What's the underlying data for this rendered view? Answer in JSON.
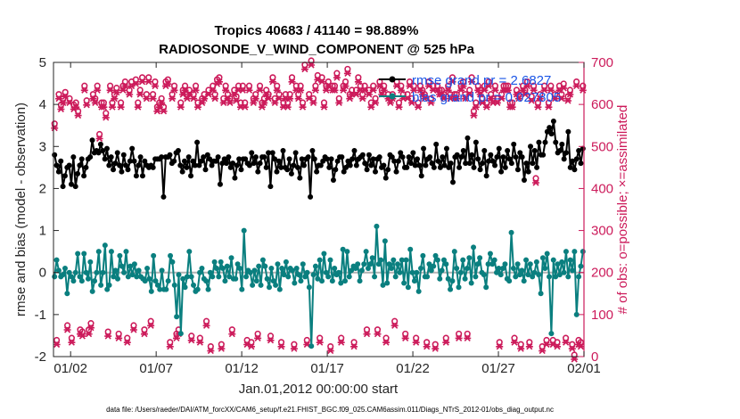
{
  "chart_data": {
    "type": "line",
    "title": "Tropics 40683 / 41140 = 98.889%",
    "subtitle": "RADIOSONDE_V_WIND_COMPONENT @ 525 hPa",
    "xlabel": "Jan.01,2012 00:00:00 start",
    "ylabel": "rmse and bias (model - observation)",
    "ylabel_right": "# of obs: o=possible; ×=assimilated",
    "xlim": [
      0,
      31
    ],
    "ylim": [
      -2,
      5
    ],
    "ylim_right": [
      0,
      700
    ],
    "x_ticks": [
      1,
      6,
      11,
      16,
      21,
      26,
      31
    ],
    "x_tick_labels": [
      "01/02",
      "01/07",
      "01/12",
      "01/17",
      "01/22",
      "01/27",
      "02/01"
    ],
    "y_ticks": [
      -2,
      -1,
      0,
      1,
      2,
      3,
      4,
      5
    ],
    "y_tick_labels": [
      "-2",
      "-1",
      "0",
      "1",
      "2",
      "3",
      "4",
      "5"
    ],
    "y_ticks_right": [
      0,
      100,
      200,
      300,
      400,
      500,
      600,
      700
    ],
    "y_tick_labels_right": [
      "0",
      "100",
      "200",
      "300",
      "400",
      "500",
      "600",
      "700"
    ],
    "legend": [
      "rmse grand pr = 2.6827",
      "bias grand pr = 0.027805"
    ],
    "footer": "data file: /Users/raeder/DAI/ATM_forcXX/CAM6_setup/f.e21.FHIST_BGC.f09_025.CAM6assim.011/Diags_NTrS_2012-01/obs_diag_output.nc",
    "colors": {
      "rmse": "#000000",
      "bias": "#0a7f7f",
      "obs": "#cc1a5a",
      "zero": "#b3b3b3"
    },
    "series": [
      {
        "name": "rmse",
        "axis": "left",
        "values": [
          2.8,
          2.55,
          2.4,
          2.65,
          2.05,
          2.3,
          2.5,
          2.55,
          2.1,
          2.75,
          2.05,
          2.35,
          2.55,
          2.7,
          2.3,
          2.5,
          2.7,
          2.75,
          3.15,
          2.85,
          2.9,
          2.85,
          3.05,
          2.9,
          2.7,
          2.95,
          2.55,
          2.75,
          2.45,
          2.6,
          2.85,
          2.55,
          2.4,
          2.8,
          2.55,
          2.45,
          2.65,
          2.95,
          2.65,
          2.3,
          2.55,
          2.75,
          2.3,
          2.65,
          2.55,
          2.5,
          2.55,
          2.5,
          2.7,
          2.7,
          2.7,
          2.75,
          1.8,
          2.75,
          2.75,
          2.8,
          2.6,
          2.65,
          2.85,
          2.9,
          2.55,
          2.4,
          2.65,
          2.5,
          2.75,
          2.3,
          2.65,
          2.55,
          3.1,
          2.55,
          2.65,
          2.75,
          2.45,
          2.8,
          2.7,
          2.55,
          2.65,
          2.65,
          2.75,
          2.1,
          2.6,
          2.7,
          2.6,
          2.75,
          2.5,
          2.6,
          2.25,
          2.55,
          2.7,
          2.45,
          2.7,
          2.7,
          2.6,
          2.55,
          2.85,
          2.6,
          2.75,
          2.4,
          2.6,
          2.75,
          2.75,
          2.5,
          2.85,
          2.05,
          2.85,
          2.7,
          2.4,
          2.65,
          2.5,
          2.9,
          2.5,
          2.45,
          2.7,
          2.35,
          2.55,
          2.85,
          2.5,
          2.25,
          2.7,
          2.55,
          2.7,
          2.75,
          1.8,
          2.9,
          2.7,
          2.4,
          2.55,
          2.55,
          2.65,
          2.75,
          2.7,
          2.5,
          2.7,
          2.2,
          2.45,
          2.65,
          2.75,
          2.75,
          2.4,
          2.5,
          2.65,
          2.55,
          2.7,
          2.9,
          2.55,
          2.7,
          2.75,
          2.8,
          2.6,
          2.45,
          2.8,
          2.55,
          2.7,
          2.4,
          2.7,
          2.75,
          2.5,
          2.55,
          2.25,
          2.45,
          2.8,
          2.75,
          2.65,
          2.4,
          2.65,
          2.85,
          2.75,
          2.5,
          2.5,
          2.75,
          2.6,
          2.85,
          2.55,
          2.7,
          2.55,
          2.3,
          2.95,
          2.55,
          2.7,
          2.75,
          2.6,
          2.5,
          3.05,
          2.65,
          2.5,
          2.75,
          2.55,
          2.95,
          2.5,
          2.6,
          2.15,
          2.75,
          2.8,
          2.5,
          2.75,
          2.9,
          2.6,
          3.2,
          2.6,
          2.8,
          2.5,
          3.1,
          2.7,
          2.45,
          2.6,
          2.9,
          2.3,
          2.65,
          2.8,
          2.65,
          2.55,
          2.75,
          2.95,
          2.4,
          2.75,
          2.5,
          2.9,
          2.7,
          2.6,
          3.05,
          2.75,
          2.45,
          2.85,
          2.75,
          2.2,
          2.6,
          2.4,
          3.0,
          2.6,
          2.9,
          2.5,
          3.1,
          2.8,
          2.8,
          3.1,
          3.35,
          3.45,
          3.3,
          3.6,
          3.1,
          2.85,
          2.9,
          3.05,
          2.7,
          2.85,
          3.35,
          2.5,
          2.65,
          2.45,
          2.7,
          2.9,
          2.6,
          2.95
        ]
      },
      {
        "name": "bias",
        "axis": "left",
        "values": [
          -0.1,
          0.3,
          0.05,
          -0.1,
          -0.05,
          0.1,
          -0.5,
          0.0,
          -0.1,
          -0.2,
          0.0,
          0.45,
          -0.1,
          -0.2,
          0.45,
          0.0,
          -0.15,
          0.25,
          -0.45,
          -0.2,
          0.0,
          0.5,
          -0.3,
          0.0,
          0.65,
          -0.4,
          -0.3,
          0.5,
          -0.1,
          0.05,
          -0.15,
          0.4,
          0.15,
          0.0,
          0.5,
          -0.1,
          0.15,
          -0.05,
          0.2,
          -0.1,
          0.05,
          -0.1,
          -0.15,
          -0.2,
          0.1,
          -0.15,
          -0.45,
          0.4,
          -0.2,
          -0.3,
          -0.4,
          0.05,
          -0.4,
          -0.4,
          -0.2,
          0.4,
          0.25,
          -0.3,
          -1.05,
          -0.05,
          -1.45,
          -0.15,
          -0.35,
          -0.1,
          0.5,
          -0.1,
          -0.3,
          -0.45,
          -0.4,
          0.0,
          0.1,
          -0.15,
          -0.2,
          -0.4,
          0.0,
          -0.1,
          0.25,
          0.1,
          -0.1,
          0.25,
          0.1,
          -0.2,
          0.15,
          -0.1,
          0.35,
          -0.15,
          -0.15,
          0.2,
          0.1,
          -0.4,
          1.0,
          -0.1,
          0.05,
          0.0,
          -0.3,
          0.05,
          -0.2,
          0.15,
          -0.3,
          0.3,
          0.15,
          -0.15,
          -0.35,
          0.1,
          -0.2,
          -0.3,
          0.2,
          -0.4,
          0.1,
          -0.05,
          0.25,
          -0.1,
          0.1,
          0.05,
          -0.25,
          0.1,
          -0.05,
          -0.2,
          0.2,
          -0.1,
          0.0,
          -0.35,
          -1.75,
          -0.05,
          0.15,
          -0.15,
          0.3,
          -0.2,
          0.45,
          0.0,
          -0.1,
          0.3,
          -0.2,
          0.1,
          -0.05,
          0.0,
          -0.25,
          0.55,
          -0.2,
          0.5,
          -0.1,
          0.05,
          0.15,
          0.1,
          0.2,
          -0.2,
          0.05,
          0.2,
          0.5,
          0.1,
          0.2,
          0.35,
          -0.1,
          1.1,
          0.2,
          0.3,
          -0.3,
          0.75,
          -0.25,
          0.2,
          0.1,
          0.3,
          -0.1,
          0.2,
          0.0,
          0.3,
          -0.25,
          0.3,
          -0.35,
          0.55,
          0.0,
          -0.2,
          0.0,
          -0.45,
          0.1,
          0.4,
          -0.1,
          -0.1,
          0.2,
          0.05,
          0.15,
          0.4,
          0.3,
          -0.15,
          0.05,
          0.3,
          0.2,
          -0.15,
          -0.4,
          -0.2,
          0.5,
          0.1,
          -0.35,
          0.0,
          0.3,
          -0.15,
          0.1,
          0.35,
          -0.25,
          0.6,
          -0.1,
          0.2,
          0.35,
          0.0,
          -0.05,
          -0.35,
          0.2,
          0.45,
          0.2,
          0.3,
          0.0,
          0.1,
          -0.05,
          0.1,
          0.2,
          -0.15,
          -0.2,
          0.95,
          0.1,
          -0.1,
          0.2,
          -0.05,
          0.05,
          -0.2,
          0.3,
          -0.05,
          0.2,
          -0.1,
          0.0,
          0.25,
          -0.05,
          -0.5,
          0.35,
          0.1,
          0.45,
          -0.1,
          -1.45,
          0.3,
          -0.1,
          0.2,
          -0.05,
          0.25,
          0.0,
          0.5,
          -0.1,
          0.3,
          0.05,
          0.5,
          -1.0,
          -0.1,
          0.15,
          0.5
        ]
      },
      {
        "name": "obs possible",
        "axis": "right",
        "values": [
          550,
          35,
          620,
          595,
          610,
          625,
          70,
          610,
          40,
          595,
          600,
          580,
          60,
          55,
          640,
          605,
          60,
          75,
          620,
          610,
          640,
          525,
          600,
          600,
          575,
          55,
          640,
          600,
          620,
          635,
          50,
          600,
          640,
          650,
          40,
          630,
          650,
          70,
          655,
          600,
          630,
          660,
          60,
          620,
          660,
          80,
          620,
          650,
          590,
          600,
          610,
          590,
          650,
          655,
          30,
          620,
          640,
          50,
          60,
          600,
          630,
          640,
          620,
          630,
          45,
          620,
          640,
          600,
          40,
          610,
          620,
          80,
          630,
          20,
          640,
          620,
          655,
          660,
          25,
          610,
          640,
          620,
          610,
          60,
          630,
          615,
          640,
          600,
          640,
          600,
          35,
          640,
          30,
          610,
          620,
          50,
          640,
          600,
          610,
          630,
          620,
          45,
          660,
          610,
          640,
          620,
          30,
          600,
          620,
          600,
          620,
          660,
          25,
          640,
          620,
          640,
          600,
          690,
          35,
          620,
          700,
          610,
          640,
          665,
          40,
          660,
          600,
          640,
          650,
          20,
          640,
          640,
          670,
          610,
          40,
          640,
          650,
          680,
          620,
          630,
          30,
          630,
          660,
          640,
          620,
          640,
          60,
          630,
          600,
          640,
          610,
          60,
          650,
          630,
          640,
          40,
          620,
          610,
          620,
          80,
          650,
          600,
          640,
          620,
          50,
          620,
          650,
          610,
          640,
          40,
          600,
          640,
          630,
          620,
          30,
          650,
          610,
          640,
          25,
          640,
          630,
          630,
          620,
          40,
          640,
          620,
          660,
          620,
          620,
          50,
          640,
          650,
          620,
          50,
          630,
          660,
          580,
          600,
          640,
          630,
          610,
          640,
          600,
          650,
          620,
          610,
          640,
          610,
          30,
          620,
          640,
          640,
          640,
          600,
          600,
          40,
          630,
          620,
          25,
          640,
          630,
          650,
          30,
          615,
          640,
          420,
          600,
          620,
          20,
          640,
          35,
          600,
          640,
          35,
          620,
          30,
          640,
          620,
          645,
          40,
          615,
          630,
          25,
          0,
          650,
          35,
          30,
          640
        ]
      }
    ]
  }
}
